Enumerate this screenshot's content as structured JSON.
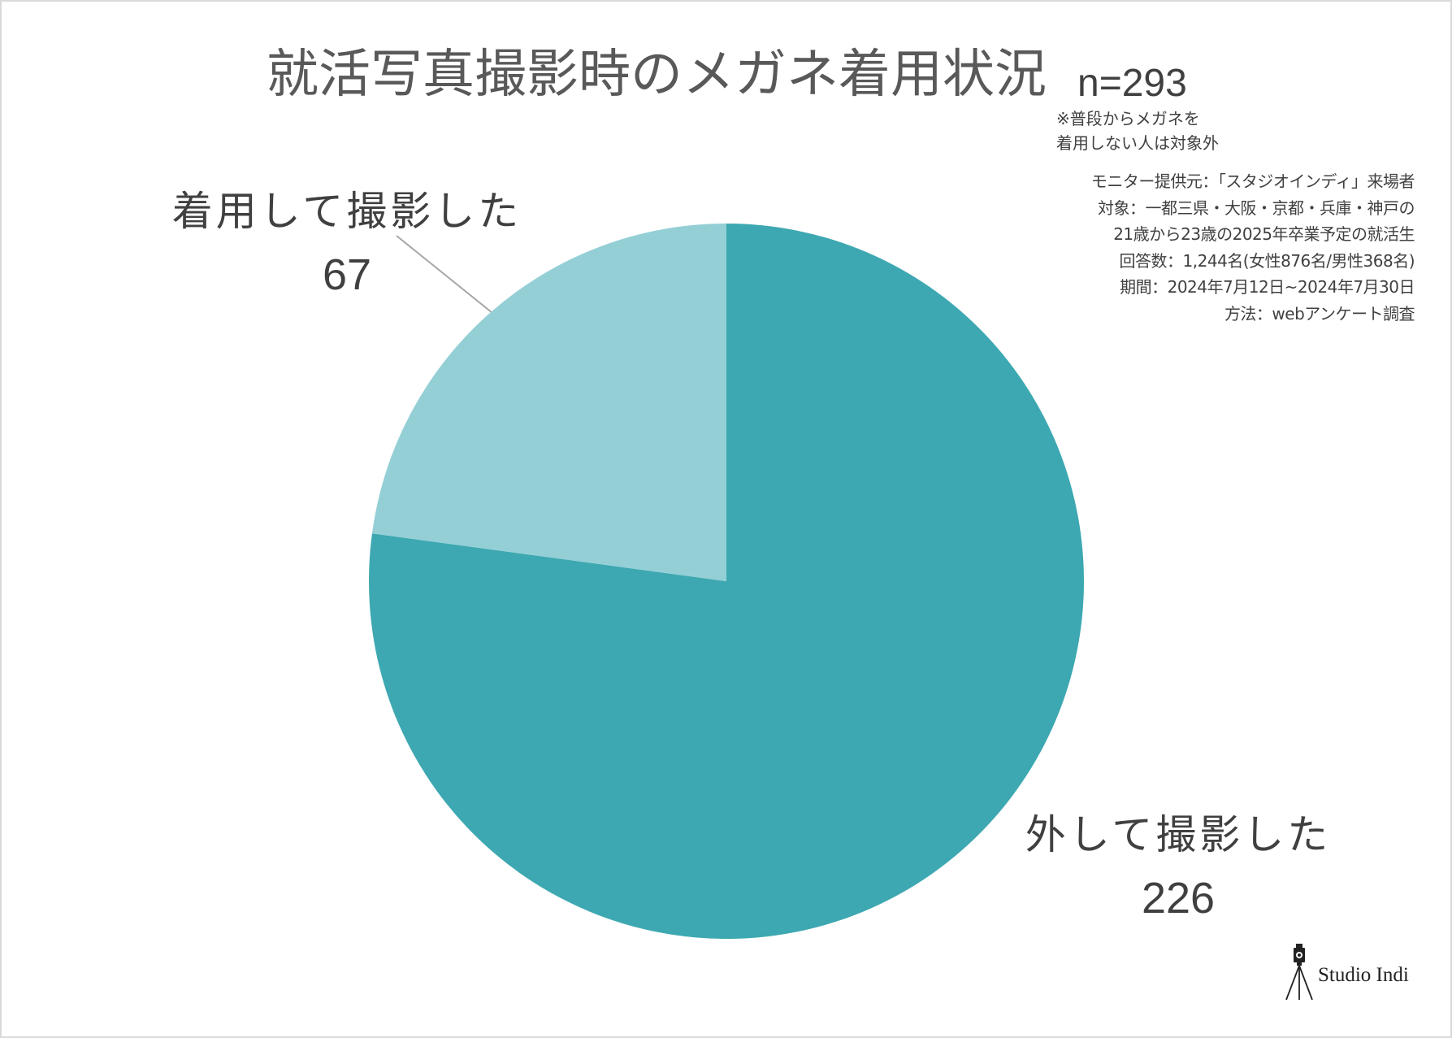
{
  "sample_size": "n=293",
  "note": [
    "※普段からメガネを",
    "着用しない人は対象外"
  ],
  "survey_info": [
    "モニター提供元：「スタジオインディ」来場者",
    "対象：一都三県・大阪・京都・兵庫・神戸の",
    "21歳から23歳の2025年卒業予定の就活生",
    "回答数：1,244名(女性876名/男性368名)",
    "期間：2024年7月12日~2024年7月30日",
    "方法：webアンケート調査"
  ],
  "brand": {
    "name": "Studio Indi",
    "icon": "camera-tripod-icon"
  },
  "chart_data": {
    "type": "pie",
    "title": "就活写真撮影時のメガネ着用状況",
    "categories": [
      "外して撮影した",
      "着用して撮影した"
    ],
    "values": [
      226,
      67
    ],
    "colors": [
      "#3DA8B1",
      "#94CFD6"
    ],
    "legend": "none"
  }
}
